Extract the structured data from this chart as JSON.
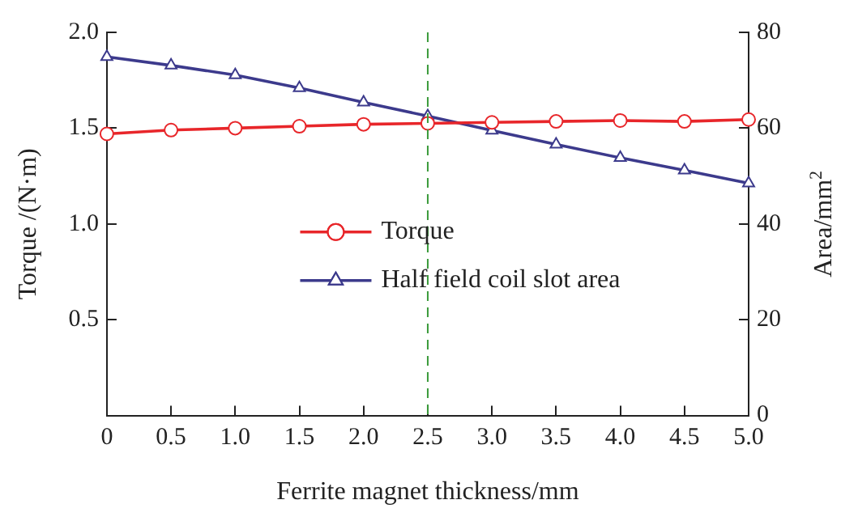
{
  "chart_data": {
    "type": "line",
    "xlabel": "Ferrite magnet thickness/mm",
    "ylabel": "Torque /(N·m)",
    "y2label": "Area/mm$^{2}$",
    "x": [
      0,
      0.5,
      1,
      1.5,
      2,
      2.5,
      3,
      3.5,
      4,
      4.5,
      5
    ],
    "series": [
      {
        "name": "Torque",
        "color": "#e8262a",
        "marker": "circle",
        "values": [
          1.47,
          1.49,
          1.5,
          1.51,
          1.52,
          1.525,
          1.53,
          1.535,
          1.54,
          1.535,
          1.545
        ]
      },
      {
        "name": "Half field coil slot area",
        "color": "#3c3a8c",
        "marker": "triangle",
        "axis": "y2",
        "values": [
          74.9,
          73.1,
          71.1,
          68.4,
          65.4,
          62.5,
          59.5,
          56.6,
          53.8,
          51.2,
          48.5
        ]
      }
    ],
    "xlim": [
      0,
      5
    ],
    "xticks": [
      0,
      0.5,
      {
        "value": 1,
        "label": "1.0"
      },
      1.5,
      {
        "value": 2,
        "label": "2.0"
      },
      2.5,
      {
        "value": 3,
        "label": "3.0"
      },
      3.5,
      {
        "value": 4,
        "label": "4.0"
      },
      4.5,
      {
        "value": 5,
        "label": "5.0"
      }
    ],
    "ylim": [
      0,
      2
    ],
    "yticks": [
      {
        "value": 0,
        "label": null
      },
      0.5,
      {
        "value": 1,
        "label": "1.0"
      },
      1.5,
      {
        "value": 2,
        "label": "2.0"
      }
    ],
    "y2lim": [
      0,
      80
    ],
    "y2ticks": [
      0,
      20,
      40,
      60,
      80
    ],
    "ref_lines": [
      {
        "axis": "x",
        "value": 2.5,
        "color": "#3a9a3a",
        "line_style": "dashed"
      }
    ],
    "grid": false,
    "legend": "center",
    "line_style": "solid"
  }
}
